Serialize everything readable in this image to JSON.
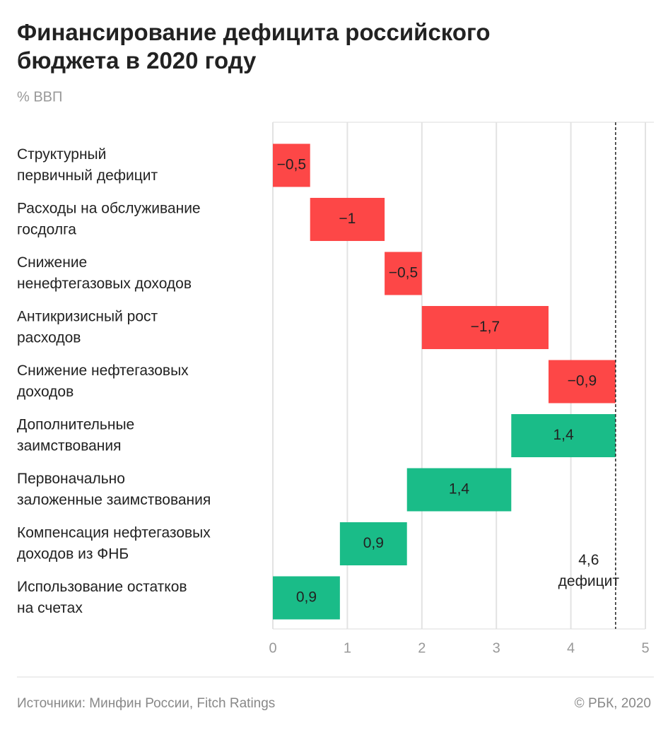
{
  "chart_data": {
    "type": "waterfall",
    "title": "Финансирование дефицита российского\nбюджета в 2020 году",
    "subtitle": "% ВВП",
    "categories": [
      "Структурный\nпервичный дефицит",
      "Расходы на обслуживание\nгосдолга",
      "Снижение\nненефтегазовых доходов",
      "Антикризисный рост\nрасходов",
      "Снижение нефтегазовых\nдоходов",
      "Дополнительные\nзаимствования",
      "Первоначально\nзаложенные заимствования",
      "Компенсация нефтегазовых\nдоходов из ФНБ",
      "Использование остатков\nна счетах"
    ],
    "values": [
      -0.5,
      -1,
      -0.5,
      -1.7,
      -0.9,
      1.4,
      1.4,
      0.9,
      0.9
    ],
    "value_labels": [
      "−0,5",
      "−1",
      "−0,5",
      "−1,7",
      "−0,9",
      "1,4",
      "1,4",
      "0,9",
      "0,9"
    ],
    "negative_color": "#fd4747",
    "positive_color": "#1abc88",
    "xlim": [
      0,
      5
    ],
    "xticks": [
      0,
      1,
      2,
      3,
      4,
      5
    ],
    "grid": true,
    "annotation": {
      "text": "4,6\nдефицит",
      "value": 4.6
    },
    "source": "Источники: Минфин России, Fitch Ratings",
    "credit": "© РБК, 2020"
  }
}
